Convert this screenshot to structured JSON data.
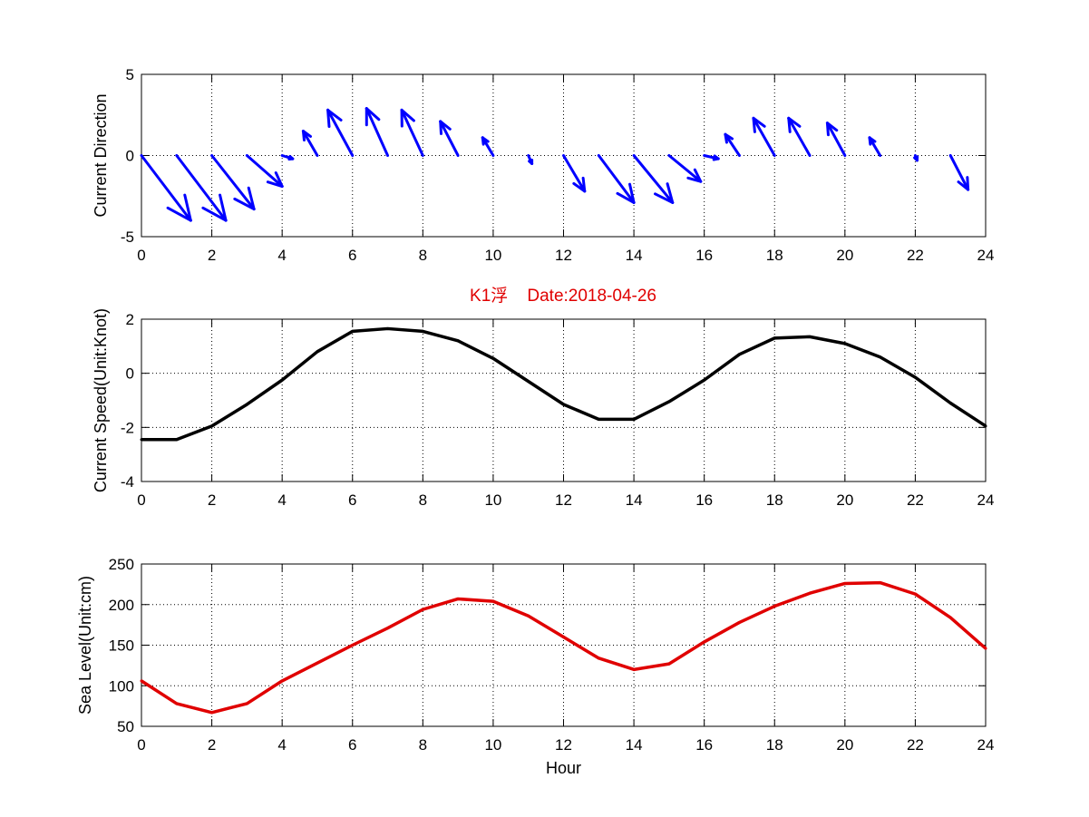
{
  "figure": {
    "title": "K1浮    Date:2018-04-26",
    "title_color": "#e00000"
  },
  "chart_data": [
    {
      "type": "quiver",
      "ylabel": "Current Direction",
      "xlabel": "",
      "xlim": [
        0,
        24
      ],
      "ylim": [
        -5,
        5
      ],
      "xticks": [
        0,
        2,
        4,
        6,
        8,
        10,
        12,
        14,
        16,
        18,
        20,
        22,
        24
      ],
      "yticks": [
        -5,
        0,
        5
      ],
      "grid": true,
      "color": "#0000ff",
      "series": [
        {
          "x": [
            0,
            1,
            2,
            3,
            4,
            5,
            6,
            7,
            8,
            9,
            10,
            11,
            12,
            13,
            14,
            15,
            16,
            17,
            18,
            19,
            20,
            21,
            22,
            23
          ],
          "u": [
            1.4,
            1.4,
            1.2,
            1.0,
            0.3,
            -0.4,
            -0.7,
            -0.6,
            -0.6,
            -0.5,
            -0.3,
            0.1,
            0.6,
            1.0,
            1.1,
            0.9,
            0.4,
            -0.4,
            -0.6,
            -0.6,
            -0.5,
            -0.3,
            0.05,
            0.5
          ],
          "v": [
            -4.0,
            -4.0,
            -3.3,
            -1.9,
            -0.2,
            1.5,
            2.8,
            2.9,
            2.8,
            2.1,
            1.1,
            -0.5,
            -2.2,
            -2.9,
            -2.9,
            -1.6,
            -0.2,
            1.3,
            2.3,
            2.3,
            2.0,
            1.1,
            -0.3,
            -2.1
          ]
        }
      ]
    },
    {
      "type": "line",
      "ylabel": "Current Speed(Unit:Knot)",
      "xlabel": "",
      "xlim": [
        0,
        24
      ],
      "ylim": [
        -4,
        2
      ],
      "xticks": [
        0,
        2,
        4,
        6,
        8,
        10,
        12,
        14,
        16,
        18,
        20,
        22,
        24
      ],
      "yticks": [
        -4,
        -2,
        0,
        2
      ],
      "grid": true,
      "series": [
        {
          "color": "#000000",
          "x": [
            0,
            1,
            2,
            3,
            4,
            5,
            6,
            7,
            8,
            9,
            10,
            11,
            12,
            13,
            14,
            15,
            16,
            17,
            18,
            19,
            20,
            21,
            22,
            23,
            24
          ],
          "values": [
            -2.45,
            -2.45,
            -1.95,
            -1.15,
            -0.25,
            0.8,
            1.55,
            1.65,
            1.55,
            1.2,
            0.55,
            -0.3,
            -1.15,
            -1.7,
            -1.7,
            -1.05,
            -0.25,
            0.7,
            1.3,
            1.35,
            1.1,
            0.6,
            -0.15,
            -1.1,
            -1.95
          ]
        }
      ]
    },
    {
      "type": "line",
      "ylabel": "Sea Level(Unit:cm)",
      "xlabel": "Hour",
      "xlim": [
        0,
        24
      ],
      "ylim": [
        50,
        250
      ],
      "xticks": [
        0,
        2,
        4,
        6,
        8,
        10,
        12,
        14,
        16,
        18,
        20,
        22,
        24
      ],
      "yticks": [
        50,
        100,
        150,
        200,
        250
      ],
      "grid": true,
      "series": [
        {
          "color": "#e00000",
          "x": [
            0,
            1,
            2,
            3,
            4,
            5,
            6,
            7,
            8,
            9,
            10,
            11,
            12,
            13,
            14,
            15,
            16,
            17,
            18,
            19,
            20,
            21,
            22,
            23,
            24
          ],
          "values": [
            106,
            78,
            67,
            78,
            106,
            128,
            150,
            171,
            194,
            207,
            204,
            186,
            160,
            134,
            120,
            127,
            154,
            178,
            198,
            214,
            226,
            227,
            213,
            184,
            146
          ]
        }
      ]
    }
  ]
}
